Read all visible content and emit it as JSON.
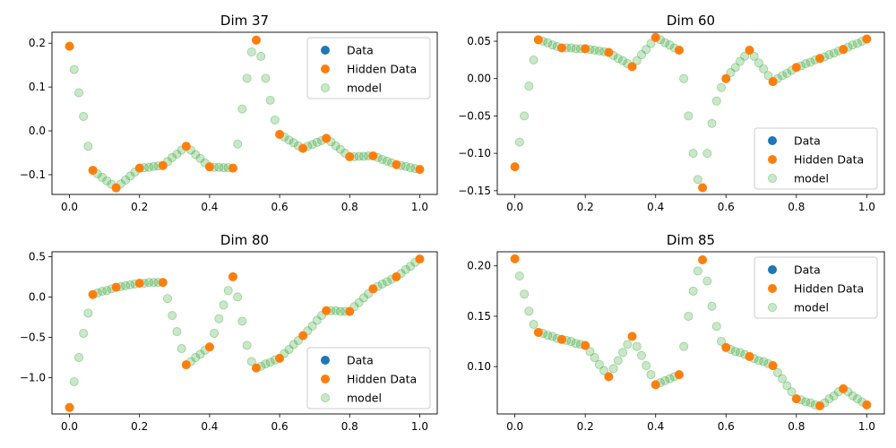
{
  "figure": {
    "background": "#ffffff"
  },
  "legend": {
    "entries": [
      {
        "label": "Data",
        "color": "#1f77b4",
        "alpha": 1.0
      },
      {
        "label": "Hidden Data",
        "color": "#ff7f0e",
        "alpha": 1.0
      },
      {
        "label": "model",
        "color": "#2ca02c",
        "alpha": 0.25
      }
    ]
  },
  "chart_data": [
    {
      "type": "scatter",
      "title": "Dim 37",
      "xlim": [
        -0.05,
        1.05
      ],
      "ylim": [
        -0.145,
        0.225
      ],
      "xticks": [
        0.0,
        0.2,
        0.4,
        0.6,
        0.8,
        1.0
      ],
      "xtick_labels": [
        "0.0",
        "0.2",
        "0.4",
        "0.6",
        "0.8",
        "1.0"
      ],
      "yticks": [
        -0.1,
        0.0,
        0.1,
        0.2
      ],
      "ytick_labels": [
        "−0.1",
        "0.0",
        "0.1",
        "0.2"
      ],
      "legend_position": "top-right",
      "series": [
        {
          "name": "Data",
          "x": [],
          "y": []
        },
        {
          "name": "Hidden Data",
          "x": [
            0.0,
            0.0667,
            0.1333,
            0.2,
            0.2667,
            0.3333,
            0.4,
            0.4667,
            0.5333,
            0.6,
            0.6667,
            0.7333,
            0.8,
            0.8667,
            0.9333,
            1.0
          ],
          "y": [
            0.193,
            -0.09,
            -0.13,
            -0.085,
            -0.079,
            -0.035,
            -0.082,
            -0.085,
            0.207,
            -0.008,
            -0.04,
            -0.017,
            -0.059,
            -0.057,
            -0.077,
            -0.088
          ]
        },
        {
          "name": "model",
          "x": [
            0.0,
            0.0133,
            0.0267,
            0.04,
            0.0533,
            0.0667,
            0.08,
            0.0933,
            0.1067,
            0.12,
            0.1333,
            0.1467,
            0.16,
            0.1733,
            0.1867,
            0.2,
            0.2133,
            0.2267,
            0.24,
            0.2533,
            0.2667,
            0.28,
            0.2933,
            0.3067,
            0.32,
            0.3333,
            0.3467,
            0.36,
            0.3733,
            0.3867,
            0.4,
            0.4133,
            0.4267,
            0.44,
            0.4533,
            0.4667,
            0.48,
            0.4933,
            0.5067,
            0.52,
            0.5333,
            0.5467,
            0.56,
            0.5733,
            0.5867,
            0.6,
            0.6133,
            0.6267,
            0.64,
            0.6533,
            0.6667,
            0.68,
            0.6933,
            0.7067,
            0.72,
            0.7333,
            0.7467,
            0.76,
            0.7733,
            0.7867,
            0.8,
            0.8133,
            0.8267,
            0.84,
            0.8533,
            0.8667,
            0.88,
            0.8933,
            0.9067,
            0.92,
            0.9333,
            0.9467,
            0.96,
            0.9733,
            0.9867,
            1.0
          ],
          "y": [
            0.193,
            0.14,
            0.087,
            0.033,
            -0.035,
            -0.09,
            -0.098,
            -0.106,
            -0.114,
            -0.122,
            -0.13,
            -0.121,
            -0.112,
            -0.103,
            -0.094,
            -0.085,
            -0.084,
            -0.083,
            -0.081,
            -0.08,
            -0.079,
            -0.07,
            -0.061,
            -0.053,
            -0.044,
            -0.035,
            -0.044,
            -0.054,
            -0.063,
            -0.073,
            -0.082,
            -0.083,
            -0.083,
            -0.084,
            -0.084,
            -0.085,
            -0.03,
            0.05,
            0.12,
            0.18,
            0.207,
            0.17,
            0.12,
            0.07,
            0.025,
            -0.008,
            -0.014,
            -0.021,
            -0.027,
            -0.034,
            -0.04,
            -0.035,
            -0.031,
            -0.026,
            -0.022,
            -0.017,
            -0.025,
            -0.034,
            -0.042,
            -0.051,
            -0.059,
            -0.059,
            -0.058,
            -0.058,
            -0.057,
            -0.057,
            -0.061,
            -0.065,
            -0.069,
            -0.073,
            -0.077,
            -0.079,
            -0.081,
            -0.084,
            -0.086,
            -0.088
          ]
        }
      ]
    },
    {
      "type": "scatter",
      "title": "Dim 60",
      "xlim": [
        -0.05,
        1.05
      ],
      "ylim": [
        -0.155,
        0.062
      ],
      "xticks": [
        0.0,
        0.2,
        0.4,
        0.6,
        0.8,
        1.0
      ],
      "xtick_labels": [
        "0.0",
        "0.2",
        "0.4",
        "0.6",
        "0.8",
        "1.0"
      ],
      "yticks": [
        -0.15,
        -0.1,
        -0.05,
        0.0,
        0.05
      ],
      "ytick_labels": [
        "−0.15",
        "−0.10",
        "−0.05",
        "0.00",
        "0.05"
      ],
      "legend_position": "bottom-right",
      "series": [
        {
          "name": "Data",
          "x": [],
          "y": []
        },
        {
          "name": "Hidden Data",
          "x": [
            0.0,
            0.0667,
            0.1333,
            0.2,
            0.2667,
            0.3333,
            0.4,
            0.4667,
            0.5333,
            0.6,
            0.6667,
            0.7333,
            0.8,
            0.8667,
            0.9333,
            1.0
          ],
          "y": [
            -0.118,
            0.052,
            0.041,
            0.04,
            0.035,
            0.016,
            0.055,
            0.038,
            -0.146,
            0.0,
            0.038,
            -0.004,
            0.015,
            0.027,
            0.039,
            0.053
          ]
        },
        {
          "name": "model",
          "x": [
            0.0,
            0.0133,
            0.0267,
            0.04,
            0.0533,
            0.0667,
            0.08,
            0.0933,
            0.1067,
            0.12,
            0.1333,
            0.1467,
            0.16,
            0.1733,
            0.1867,
            0.2,
            0.2133,
            0.2267,
            0.24,
            0.2533,
            0.2667,
            0.28,
            0.2933,
            0.3067,
            0.32,
            0.3333,
            0.3467,
            0.36,
            0.3733,
            0.3867,
            0.4,
            0.4133,
            0.4267,
            0.44,
            0.4533,
            0.4667,
            0.48,
            0.4933,
            0.5067,
            0.52,
            0.5333,
            0.5467,
            0.56,
            0.5733,
            0.5867,
            0.6,
            0.6133,
            0.6267,
            0.64,
            0.6533,
            0.6667,
            0.68,
            0.6933,
            0.7067,
            0.72,
            0.7333,
            0.7467,
            0.76,
            0.7733,
            0.7867,
            0.8,
            0.8133,
            0.8267,
            0.84,
            0.8533,
            0.8667,
            0.88,
            0.8933,
            0.9067,
            0.92,
            0.9333,
            0.9467,
            0.96,
            0.9733,
            0.9867,
            1.0
          ],
          "y": [
            -0.118,
            -0.085,
            -0.05,
            -0.01,
            0.025,
            0.052,
            0.05,
            0.048,
            0.045,
            0.043,
            0.041,
            0.041,
            0.041,
            0.04,
            0.04,
            0.04,
            0.039,
            0.038,
            0.037,
            0.036,
            0.035,
            0.031,
            0.027,
            0.024,
            0.02,
            0.016,
            0.024,
            0.032,
            0.039,
            0.047,
            0.055,
            0.052,
            0.048,
            0.045,
            0.041,
            0.038,
            0.0,
            -0.05,
            -0.1,
            -0.135,
            -0.146,
            -0.1,
            -0.06,
            -0.03,
            -0.012,
            0.0,
            0.008,
            0.015,
            0.023,
            0.03,
            0.038,
            0.03,
            0.021,
            0.013,
            0.004,
            -0.004,
            0.0,
            0.004,
            0.007,
            0.011,
            0.015,
            0.017,
            0.02,
            0.022,
            0.025,
            0.027,
            0.029,
            0.032,
            0.034,
            0.037,
            0.039,
            0.042,
            0.045,
            0.047,
            0.05,
            0.053
          ]
        }
      ]
    },
    {
      "type": "scatter",
      "title": "Dim 80",
      "xlim": [
        -0.05,
        1.05
      ],
      "ylim": [
        -1.45,
        0.56
      ],
      "xticks": [
        0.0,
        0.2,
        0.4,
        0.6,
        0.8,
        1.0
      ],
      "xtick_labels": [
        "0.0",
        "0.2",
        "0.4",
        "0.6",
        "0.8",
        "1.0"
      ],
      "yticks": [
        -1.0,
        -0.5,
        0.0,
        0.5
      ],
      "ytick_labels": [
        "−1.0",
        "−0.5",
        "0.0",
        "0.5"
      ],
      "legend_position": "bottom-right",
      "series": [
        {
          "name": "Data",
          "x": [],
          "y": []
        },
        {
          "name": "Hidden Data",
          "x": [
            0.0,
            0.0667,
            0.1333,
            0.2,
            0.2667,
            0.3333,
            0.4,
            0.4667,
            0.5333,
            0.6,
            0.6667,
            0.7333,
            0.8,
            0.8667,
            0.9333,
            1.0
          ],
          "y": [
            -1.37,
            0.03,
            0.12,
            0.17,
            0.18,
            -0.84,
            -0.62,
            0.25,
            -0.88,
            -0.76,
            -0.48,
            -0.17,
            -0.18,
            0.1,
            0.25,
            0.47
          ]
        },
        {
          "name": "model",
          "x": [
            0.0,
            0.0133,
            0.0267,
            0.04,
            0.0533,
            0.0667,
            0.08,
            0.0933,
            0.1067,
            0.12,
            0.1333,
            0.1467,
            0.16,
            0.1733,
            0.1867,
            0.2,
            0.2133,
            0.2267,
            0.24,
            0.2533,
            0.2667,
            0.28,
            0.2933,
            0.3067,
            0.32,
            0.3333,
            0.3467,
            0.36,
            0.3733,
            0.3867,
            0.4,
            0.4133,
            0.4267,
            0.44,
            0.4533,
            0.4667,
            0.48,
            0.4933,
            0.5067,
            0.52,
            0.5333,
            0.5467,
            0.56,
            0.5733,
            0.5867,
            0.6,
            0.6133,
            0.6267,
            0.64,
            0.6533,
            0.6667,
            0.68,
            0.6933,
            0.7067,
            0.72,
            0.7333,
            0.7467,
            0.76,
            0.7733,
            0.7867,
            0.8,
            0.8133,
            0.8267,
            0.84,
            0.8533,
            0.8667,
            0.88,
            0.8933,
            0.9067,
            0.92,
            0.9333,
            0.9467,
            0.96,
            0.9733,
            0.9867,
            1.0
          ],
          "y": [
            -1.37,
            -1.05,
            -0.75,
            -0.45,
            -0.2,
            0.03,
            0.05,
            0.07,
            0.08,
            0.1,
            0.12,
            0.13,
            0.14,
            0.15,
            0.16,
            0.17,
            0.17,
            0.18,
            0.18,
            0.18,
            0.18,
            -0.02,
            -0.23,
            -0.43,
            -0.64,
            -0.84,
            -0.8,
            -0.75,
            -0.71,
            -0.66,
            -0.62,
            -0.45,
            -0.27,
            -0.1,
            0.08,
            0.25,
            0.0,
            -0.3,
            -0.6,
            -0.8,
            -0.88,
            -0.86,
            -0.83,
            -0.81,
            -0.78,
            -0.76,
            -0.7,
            -0.65,
            -0.59,
            -0.54,
            -0.48,
            -0.42,
            -0.36,
            -0.29,
            -0.23,
            -0.17,
            -0.17,
            -0.17,
            -0.18,
            -0.18,
            -0.18,
            -0.12,
            -0.07,
            -0.01,
            0.04,
            0.1,
            0.13,
            0.16,
            0.19,
            0.22,
            0.25,
            0.29,
            0.34,
            0.38,
            0.43,
            0.47
          ]
        }
      ]
    },
    {
      "type": "scatter",
      "title": "Dim 85",
      "xlim": [
        -0.05,
        1.05
      ],
      "ylim": [
        0.053,
        0.214
      ],
      "xticks": [
        0.0,
        0.2,
        0.4,
        0.6,
        0.8,
        1.0
      ],
      "xtick_labels": [
        "0.0",
        "0.2",
        "0.4",
        "0.6",
        "0.8",
        "1.0"
      ],
      "yticks": [
        0.1,
        0.15,
        0.2
      ],
      "ytick_labels": [
        "0.10",
        "0.15",
        "0.20"
      ],
      "legend_position": "top-right",
      "series": [
        {
          "name": "Data",
          "x": [],
          "y": []
        },
        {
          "name": "Hidden Data",
          "x": [
            0.0,
            0.0667,
            0.1333,
            0.2,
            0.2667,
            0.3333,
            0.4,
            0.4667,
            0.5333,
            0.6,
            0.6667,
            0.7333,
            0.8,
            0.8667,
            0.9333,
            1.0
          ],
          "y": [
            0.207,
            0.134,
            0.127,
            0.121,
            0.09,
            0.13,
            0.082,
            0.092,
            0.206,
            0.119,
            0.11,
            0.101,
            0.068,
            0.061,
            0.078,
            0.062
          ]
        },
        {
          "name": "model",
          "x": [
            0.0,
            0.0133,
            0.0267,
            0.04,
            0.0533,
            0.0667,
            0.08,
            0.0933,
            0.1067,
            0.12,
            0.1333,
            0.1467,
            0.16,
            0.1733,
            0.1867,
            0.2,
            0.2133,
            0.2267,
            0.24,
            0.2533,
            0.2667,
            0.28,
            0.2933,
            0.3067,
            0.32,
            0.3333,
            0.3467,
            0.36,
            0.3733,
            0.3867,
            0.4,
            0.4133,
            0.4267,
            0.44,
            0.4533,
            0.4667,
            0.48,
            0.4933,
            0.5067,
            0.52,
            0.5333,
            0.5467,
            0.56,
            0.5733,
            0.5867,
            0.6,
            0.6133,
            0.6267,
            0.64,
            0.6533,
            0.6667,
            0.68,
            0.6933,
            0.7067,
            0.72,
            0.7333,
            0.7467,
            0.76,
            0.7733,
            0.7867,
            0.8,
            0.8133,
            0.8267,
            0.84,
            0.8533,
            0.8667,
            0.88,
            0.8933,
            0.9067,
            0.92,
            0.9333,
            0.9467,
            0.96,
            0.9733,
            0.9867,
            1.0
          ],
          "y": [
            0.207,
            0.19,
            0.172,
            0.155,
            0.142,
            0.134,
            0.133,
            0.131,
            0.13,
            0.128,
            0.127,
            0.126,
            0.125,
            0.123,
            0.122,
            0.121,
            0.115,
            0.109,
            0.102,
            0.096,
            0.09,
            0.098,
            0.106,
            0.114,
            0.122,
            0.13,
            0.12,
            0.111,
            0.101,
            0.092,
            0.082,
            0.084,
            0.086,
            0.088,
            0.09,
            0.092,
            0.12,
            0.15,
            0.175,
            0.195,
            0.206,
            0.185,
            0.16,
            0.14,
            0.125,
            0.119,
            0.117,
            0.115,
            0.114,
            0.112,
            0.11,
            0.108,
            0.106,
            0.105,
            0.103,
            0.101,
            0.094,
            0.088,
            0.081,
            0.075,
            0.068,
            0.067,
            0.065,
            0.064,
            0.062,
            0.061,
            0.064,
            0.068,
            0.071,
            0.075,
            0.078,
            0.075,
            0.071,
            0.068,
            0.065,
            0.062
          ]
        }
      ]
    }
  ]
}
